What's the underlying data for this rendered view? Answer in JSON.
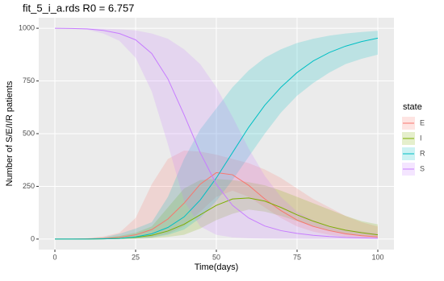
{
  "chart_data": {
    "type": "line",
    "title": "fit_5_i_a.rds R0 = 6.757",
    "x_label": "Time(days)",
    "y_label": "Number of S/E/I/R patients",
    "legend_title": "state",
    "legend_position": "right",
    "grid": true,
    "x": [
      0,
      5,
      10,
      15,
      20,
      25,
      30,
      35,
      40,
      45,
      50,
      55,
      60,
      65,
      70,
      75,
      80,
      85,
      90,
      95,
      100
    ],
    "xlim": [
      -5,
      105
    ],
    "xticks": [
      0,
      25,
      50,
      75,
      100
    ],
    "ylim": [
      -50,
      1050
    ],
    "yticks": [
      0,
      250,
      500,
      750,
      1000
    ],
    "series": [
      {
        "name": "E",
        "color": "#F8766D",
        "values": [
          0,
          0,
          1,
          3,
          8,
          20,
          45,
          95,
          170,
          260,
          315,
          305,
          255,
          190,
          135,
          90,
          60,
          40,
          25,
          16,
          10
        ],
        "lower": [
          0,
          0,
          0,
          0,
          1,
          3,
          8,
          25,
          60,
          130,
          200,
          230,
          200,
          150,
          100,
          60,
          35,
          20,
          10,
          6,
          3
        ],
        "upper": [
          0,
          1,
          4,
          12,
          30,
          100,
          260,
          380,
          420,
          415,
          400,
          380,
          360,
          330,
          290,
          240,
          190,
          150,
          110,
          80,
          60
        ]
      },
      {
        "name": "I",
        "color": "#7CAE00",
        "values": [
          0,
          0,
          0,
          1,
          3,
          8,
          18,
          38,
          70,
          115,
          160,
          190,
          195,
          180,
          150,
          115,
          85,
          60,
          42,
          30,
          20
        ],
        "lower": [
          0,
          0,
          0,
          0,
          0,
          1,
          4,
          10,
          20,
          50,
          90,
          120,
          140,
          130,
          110,
          85,
          60,
          40,
          25,
          15,
          8
        ],
        "upper": [
          0,
          0,
          2,
          6,
          15,
          30,
          60,
          150,
          240,
          280,
          285,
          280,
          270,
          255,
          230,
          200,
          170,
          140,
          110,
          85,
          70
        ]
      },
      {
        "name": "R",
        "color": "#00BFC4",
        "values": [
          0,
          0,
          0,
          1,
          3,
          10,
          25,
          55,
          105,
          185,
          290,
          410,
          530,
          635,
          720,
          790,
          845,
          885,
          915,
          937,
          953
        ],
        "lower": [
          0,
          0,
          0,
          0,
          0,
          2,
          8,
          20,
          45,
          100,
          180,
          280,
          390,
          500,
          600,
          680,
          740,
          790,
          830,
          855,
          875
        ],
        "upper": [
          0,
          0,
          2,
          8,
          25,
          50,
          80,
          200,
          380,
          520,
          620,
          720,
          800,
          860,
          900,
          930,
          950,
          965,
          975,
          982,
          988
        ]
      },
      {
        "name": "S",
        "color": "#C77CFF",
        "values": [
          1000,
          999,
          997,
          990,
          975,
          945,
          880,
          760,
          590,
          410,
          260,
          160,
          100,
          62,
          40,
          27,
          18,
          12,
          8,
          6,
          4
        ],
        "lower": [
          1000,
          998,
          993,
          975,
          940,
          860,
          700,
          450,
          180,
          60,
          20,
          8,
          4,
          2,
          1,
          1,
          0,
          0,
          0,
          0,
          0
        ],
        "upper": [
          1000,
          1000,
          1000,
          998,
          995,
          990,
          975,
          950,
          900,
          830,
          720,
          580,
          430,
          300,
          200,
          130,
          90,
          60,
          45,
          35,
          28
        ]
      }
    ]
  }
}
